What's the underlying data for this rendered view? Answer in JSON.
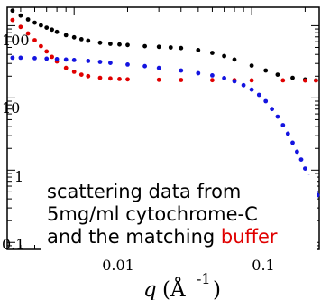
{
  "chart_data": {
    "type": "scatter",
    "xscale": "log",
    "yscale": "log",
    "xlim": [
      0.0042,
      0.24
    ],
    "ylim": [
      0.08,
      180
    ],
    "x_tick_labels": [
      "0.01",
      "0.1"
    ],
    "y_tick_labels": [
      "100",
      "10",
      "1",
      "0.1"
    ],
    "xlabel_var": "q",
    "xlabel_unit": "(Å",
    "xlabel_exp": "-1",
    "xlabel_close": ")",
    "annotation": {
      "line1": "scattering data from",
      "line2": "5mg/ml cytochrome-C",
      "line3_prefix": "and the matching ",
      "line3_highlight": "buffer"
    },
    "grid": false,
    "series": [
      {
        "color": "#000000",
        "points": [
          [
            0.0045,
            162
          ],
          [
            0.005,
            138
          ],
          [
            0.0055,
            122
          ],
          [
            0.006,
            110
          ],
          [
            0.0065,
            101
          ],
          [
            0.007,
            94
          ],
          [
            0.0075,
            88
          ],
          [
            0.008,
            82
          ],
          [
            0.009,
            74
          ],
          [
            0.01,
            69
          ],
          [
            0.011,
            65
          ],
          [
            0.012,
            62
          ],
          [
            0.014,
            58
          ],
          [
            0.016,
            56
          ],
          [
            0.018,
            55
          ],
          [
            0.02,
            54
          ],
          [
            0.025,
            52
          ],
          [
            0.03,
            51
          ],
          [
            0.035,
            50
          ],
          [
            0.04,
            49
          ],
          [
            0.05,
            46
          ],
          [
            0.06,
            42
          ],
          [
            0.07,
            38
          ],
          [
            0.08,
            34
          ],
          [
            0.1,
            28
          ],
          [
            0.12,
            24
          ],
          [
            0.14,
            21
          ],
          [
            0.17,
            19
          ],
          [
            0.2,
            18
          ],
          [
            0.23,
            17.5
          ]
        ]
      },
      {
        "color": "#e00000",
        "points": [
          [
            0.0045,
            120
          ],
          [
            0.005,
            96
          ],
          [
            0.0055,
            78
          ],
          [
            0.006,
            63
          ],
          [
            0.0065,
            52
          ],
          [
            0.007,
            44
          ],
          [
            0.0075,
            37
          ],
          [
            0.008,
            32
          ],
          [
            0.009,
            26
          ],
          [
            0.01,
            23
          ],
          [
            0.011,
            21
          ],
          [
            0.012,
            20
          ],
          [
            0.014,
            19
          ],
          [
            0.016,
            18.6
          ],
          [
            0.018,
            18.3
          ],
          [
            0.02,
            18.1
          ],
          [
            0.03,
            17.8
          ],
          [
            0.04,
            17.7
          ],
          [
            0.06,
            17.6
          ],
          [
            0.08,
            17.6
          ],
          [
            0.1,
            17.5
          ],
          [
            0.15,
            17.5
          ],
          [
            0.2,
            17.4
          ],
          [
            0.23,
            17.4
          ]
        ]
      },
      {
        "color": "#1414e0",
        "points": [
          [
            0.0045,
            36
          ],
          [
            0.005,
            36
          ],
          [
            0.006,
            35.5
          ],
          [
            0.007,
            35
          ],
          [
            0.008,
            34.5
          ],
          [
            0.009,
            34
          ],
          [
            0.01,
            33.5
          ],
          [
            0.012,
            32.5
          ],
          [
            0.014,
            31.5
          ],
          [
            0.016,
            30.5
          ],
          [
            0.02,
            29
          ],
          [
            0.025,
            27.5
          ],
          [
            0.03,
            26
          ],
          [
            0.04,
            24
          ],
          [
            0.05,
            22
          ],
          [
            0.06,
            20.5
          ],
          [
            0.07,
            18.8
          ],
          [
            0.08,
            17
          ],
          [
            0.09,
            15
          ],
          [
            0.1,
            13
          ],
          [
            0.11,
            11
          ],
          [
            0.12,
            9
          ],
          [
            0.13,
            7
          ],
          [
            0.14,
            5.5
          ],
          [
            0.15,
            4.2
          ],
          [
            0.16,
            3.2
          ],
          [
            0.17,
            2.4
          ],
          [
            0.18,
            1.8
          ],
          [
            0.19,
            1.4
          ],
          [
            0.2,
            1.05
          ],
          [
            0.21,
            0.8
          ],
          [
            0.22,
            0.62
          ],
          [
            0.23,
            0.5
          ],
          [
            0.235,
            0.45
          ]
        ]
      }
    ]
  }
}
